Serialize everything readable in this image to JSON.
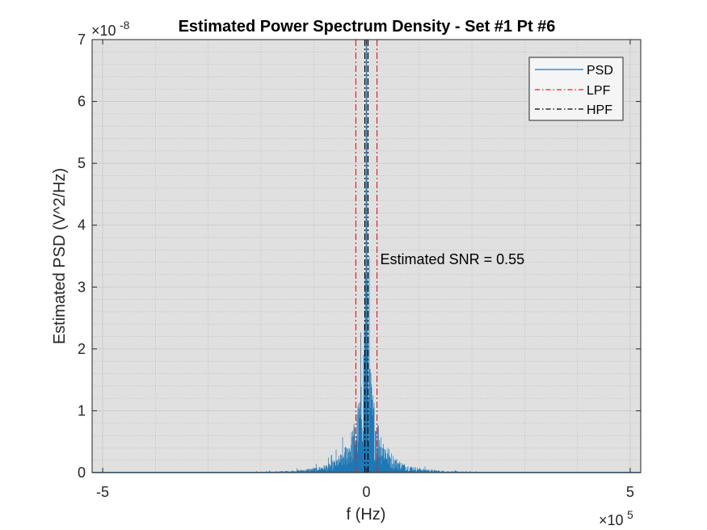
{
  "chart_data": {
    "type": "line",
    "title": "Estimated Power Spectrum Density - Set #1 Pt #6",
    "xlabel": "f (Hz)",
    "ylabel": "Estimated PSD (V^2/Hz)",
    "x_scale_exponent_base": "×10",
    "x_scale_exponent": "5",
    "y_scale_exponent_base": "×10",
    "y_scale_exponent": "-8",
    "xlim": [
      -520000,
      520000
    ],
    "ylim": [
      0,
      7e-08
    ],
    "xticks": [
      -500000,
      0,
      500000
    ],
    "xtick_labels": [
      "-5",
      "0",
      "5"
    ],
    "yticks": [
      0,
      1e-08,
      2e-08,
      3e-08,
      4e-08,
      5e-08,
      6e-08,
      7e-08
    ],
    "ytick_labels": [
      "0",
      "1",
      "2",
      "3",
      "4",
      "5",
      "6",
      "7"
    ],
    "grid": true,
    "minor_grid": true,
    "background": "#e0e0e0",
    "legend_location": "top-right",
    "series": [
      {
        "name": "PSD",
        "color": "#1f77b4",
        "style": "solid",
        "envelope_x": [
          -520000,
          -400000,
          -300000,
          -200000,
          -150000,
          -100000,
          -70000,
          -50000,
          -30000,
          -20000,
          -10000,
          -5000,
          0,
          5000,
          10000,
          20000,
          30000,
          50000,
          70000,
          100000,
          150000,
          200000,
          300000,
          400000,
          520000
        ],
        "envelope_y": [
          0,
          2e-11,
          6e-11,
          1.5e-10,
          3e-10,
          8e-10,
          1.6e-09,
          3e-09,
          6.5e-09,
          9.5e-09,
          1.5e-08,
          2.3e-08,
          7e-08,
          2.3e-08,
          1.5e-08,
          9.5e-09,
          6.5e-09,
          3e-09,
          1.6e-09,
          8e-10,
          3e-10,
          1.5e-10,
          6e-11,
          2e-11,
          0
        ]
      },
      {
        "name": "LPF",
        "color": "#d62728",
        "style": "dash-dot",
        "x": [
          -20000,
          20000
        ]
      },
      {
        "name": "HPF",
        "color": "#000000",
        "style": "dash-dot",
        "x": [
          -3000,
          3000
        ]
      }
    ],
    "annotations": [
      {
        "text": "Estimated SNR = 0.55",
        "x": 20000,
        "y": 3.45e-08
      }
    ]
  }
}
